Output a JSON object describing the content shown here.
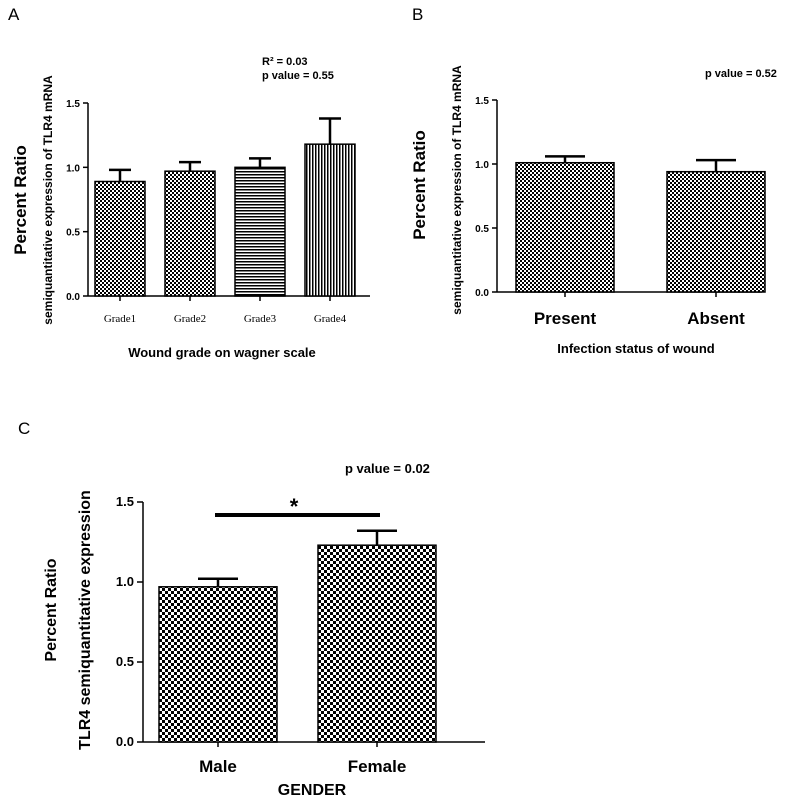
{
  "colors": {
    "axis": "#000000",
    "bar_outline": "#000000",
    "background": "#ffffff"
  },
  "chart_data": [
    {
      "panel": "A",
      "type": "bar",
      "categories": [
        "Grade1",
        "Grade2",
        "Grade3",
        "Grade4"
      ],
      "values": [
        0.89,
        0.97,
        1.0,
        1.18
      ],
      "errors": [
        0.09,
        0.07,
        0.07,
        0.2
      ],
      "patterns": [
        "checker",
        "checker",
        "hstripes",
        "vstripes"
      ],
      "ylabel": "Percent Ratio",
      "ylabel_sub": "semiquantitative expression of TLR4 mRNA",
      "xlabel": "Wound grade on wagner scale",
      "ylim": [
        0,
        1.5
      ],
      "yticks": [
        "0.0",
        "0.5",
        "1.0",
        "1.5"
      ],
      "annotations": [
        "R² = 0.03",
        "p value = 0.55"
      ]
    },
    {
      "panel": "B",
      "type": "bar",
      "categories": [
        "Present",
        "Absent"
      ],
      "values": [
        1.01,
        0.94
      ],
      "errors": [
        0.05,
        0.09
      ],
      "patterns": [
        "checker",
        "checker"
      ],
      "ylabel": "Percent Ratio",
      "ylabel_sub": "semiquantitative expression of TLR4 mRNA",
      "xlabel": "Infection status of wound",
      "ylim": [
        0,
        1.5
      ],
      "yticks": [
        "0.0",
        "0.5",
        "1.0",
        "1.5"
      ],
      "annotations": [
        "p value = 0.52"
      ]
    },
    {
      "panel": "C",
      "type": "bar",
      "categories": [
        "Male",
        "Female"
      ],
      "values": [
        0.97,
        1.23
      ],
      "errors": [
        0.05,
        0.09
      ],
      "patterns": [
        "checker",
        "checker"
      ],
      "ylabel": "Percent Ratio",
      "ylabel_sub": "TLR4 semiquantitative expression",
      "xlabel": "GENDER",
      "ylim": [
        0,
        1.5
      ],
      "yticks": [
        "0.0",
        "0.5",
        "1.0",
        "1.5"
      ],
      "annotations": [
        "p value = 0.02"
      ],
      "significance": {
        "label": "*",
        "from": "Male",
        "to": "Female"
      }
    }
  ]
}
